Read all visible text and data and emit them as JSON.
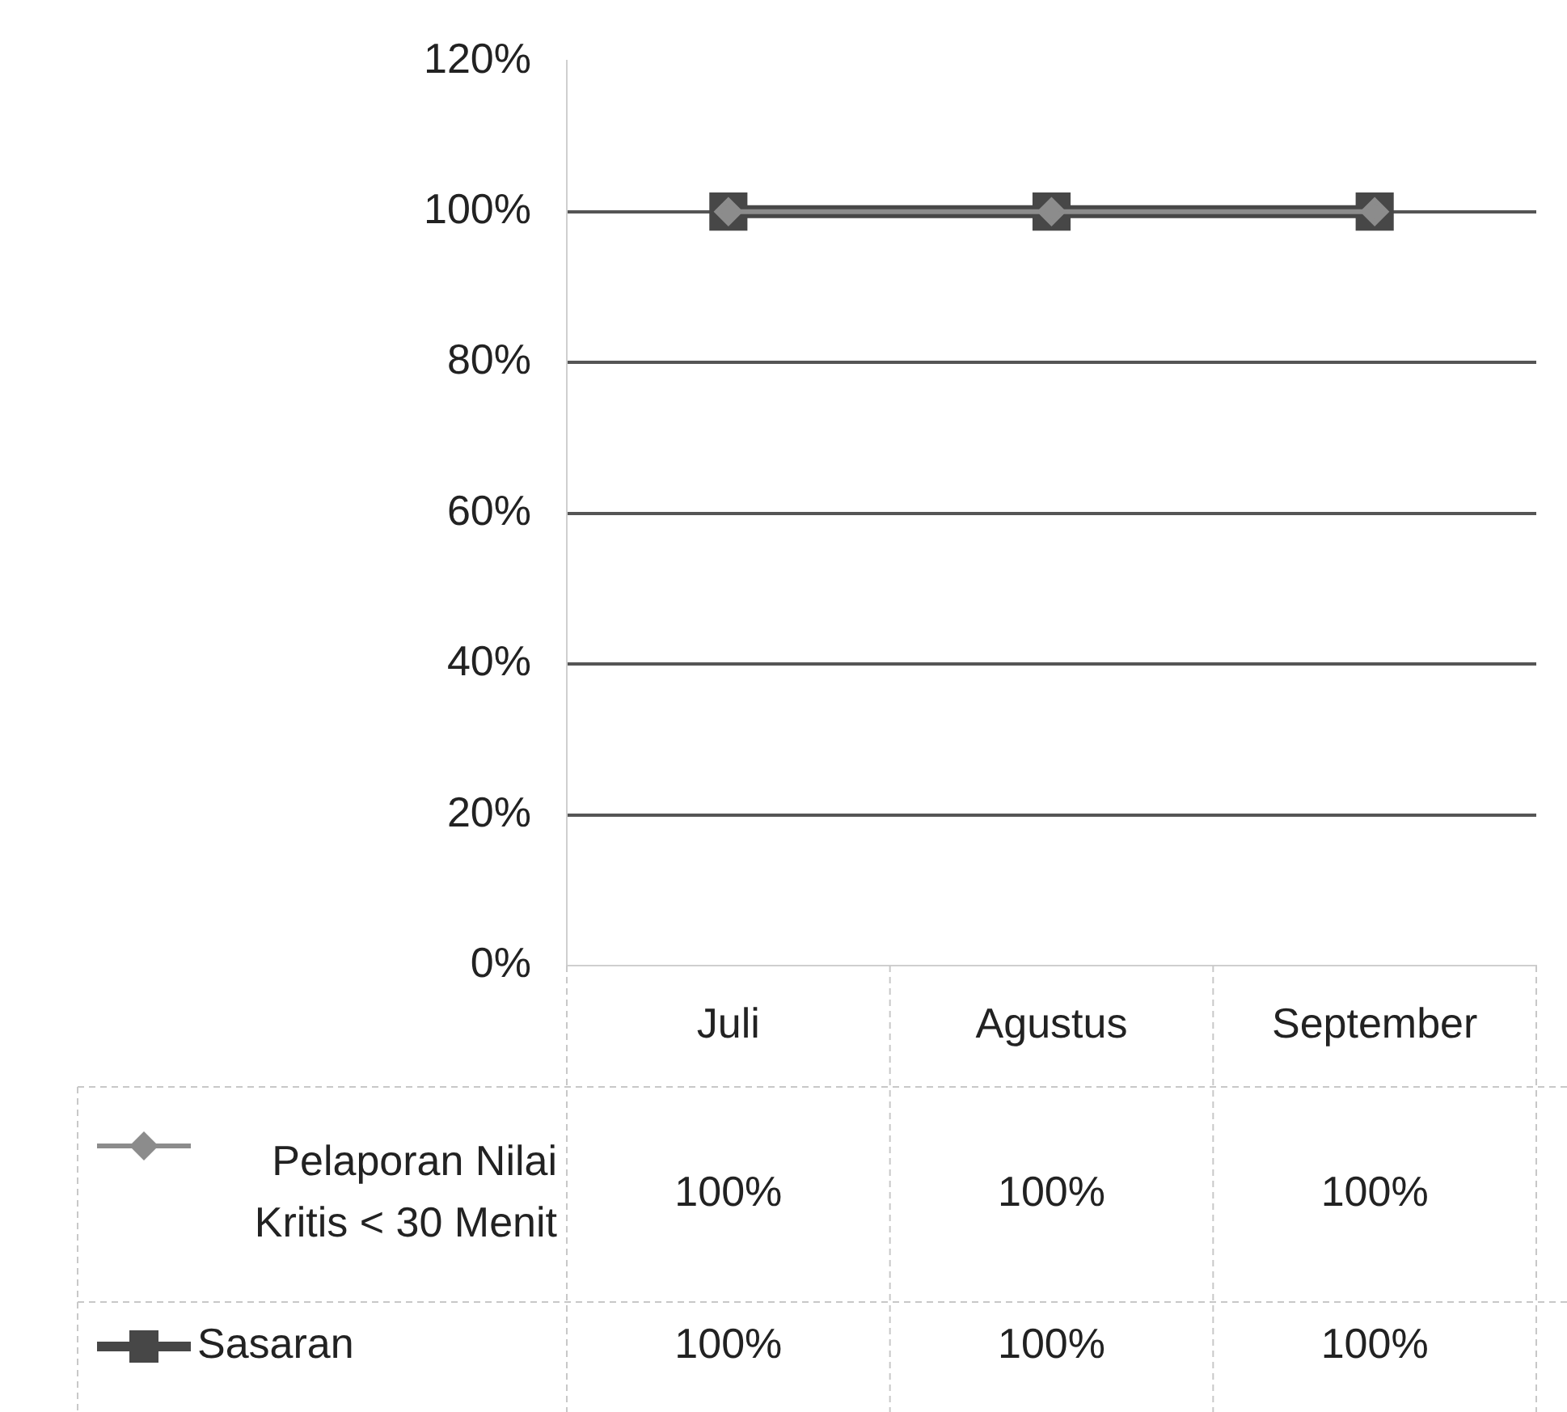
{
  "chart_data": {
    "type": "line",
    "categories": [
      "Juli",
      "Agustus",
      "September"
    ],
    "series": [
      {
        "name": "Pelaporan Nilai Kritis < 30 Menit",
        "color": "#8c8c8c",
        "values": [
          100,
          100,
          100
        ],
        "marker": "diamond",
        "value_labels": [
          "100%",
          "100%",
          "100%"
        ]
      },
      {
        "name": "Sasaran",
        "color": "#474747",
        "values": [
          100,
          100,
          100
        ],
        "marker": "square",
        "value_labels": [
          "100%",
          "100%",
          "100%"
        ]
      }
    ],
    "ylim": [
      0,
      120
    ],
    "yticks": [
      {
        "value": 0,
        "label": "0%"
      },
      {
        "value": 20,
        "label": "20%"
      },
      {
        "value": 40,
        "label": "40%"
      },
      {
        "value": 60,
        "label": "60%"
      },
      {
        "value": 80,
        "label": "80%"
      },
      {
        "value": 100,
        "label": "100%"
      },
      {
        "value": 120,
        "label": "120%"
      }
    ],
    "grid": "y",
    "legend": "bottom left"
  }
}
